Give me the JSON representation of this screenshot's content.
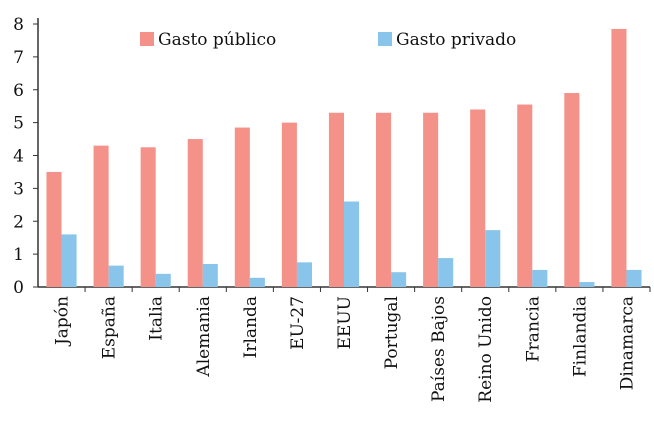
{
  "chart_data": {
    "type": "bar",
    "categories": [
      "Japón",
      "España",
      "Italia",
      "Alemania",
      "Irlanda",
      "EU-27",
      "EEUU",
      "Portugal",
      "Países Bajos",
      "Reino Unido",
      "Francia",
      "Finlandia",
      "Dinamarca"
    ],
    "series": [
      {
        "name": "Gasto público",
        "color": "#f4928a",
        "values": [
          3.5,
          4.3,
          4.25,
          4.5,
          4.85,
          5.0,
          5.3,
          5.3,
          5.3,
          5.4,
          5.55,
          5.9,
          7.85
        ]
      },
      {
        "name": "Gasto privado",
        "color": "#89c4ea",
        "values": [
          1.6,
          0.65,
          0.4,
          0.7,
          0.28,
          0.75,
          2.6,
          0.45,
          0.88,
          1.73,
          0.52,
          0.15,
          0.52
        ]
      }
    ],
    "ylim": [
      0,
      8
    ],
    "yticks": [
      0,
      1,
      2,
      3,
      4,
      5,
      6,
      7,
      8
    ],
    "grid": false,
    "legend": "top"
  }
}
